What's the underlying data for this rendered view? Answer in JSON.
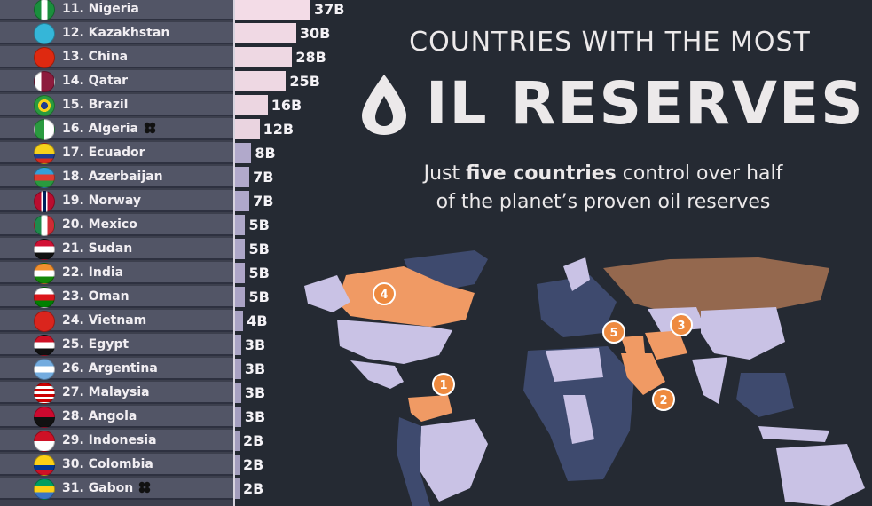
{
  "header": {
    "title_line1": "COUNTRIES WITH THE MOST",
    "title_line2": "OIL RESERVES",
    "subtitle_pre": "Just ",
    "subtitle_bold": "five countries",
    "subtitle_post": " control over half",
    "subtitle_line2": "of the planet’s proven oil reserves"
  },
  "map": {
    "markers": [
      "1",
      "2",
      "3",
      "4",
      "5"
    ],
    "colors": {
      "top5": "#f09a64",
      "reserves": "#c9c2e5",
      "other": "#3e4a6e",
      "marker": "#ee8a3f"
    }
  },
  "chart_data": {
    "type": "bar",
    "orientation": "horizontal",
    "xlim": [
      0,
      37
    ],
    "categories": [
      "11. Nigeria",
      "12. Kazakhstan",
      "13. China",
      "14. Qatar",
      "15. Brazil",
      "16. Algeria",
      "17. Ecuador",
      "18. Azerbaijan",
      "19. Norway",
      "20. Mexico",
      "21. Sudan",
      "22. India",
      "23. Oman",
      "24. Vietnam",
      "25. Egypt",
      "26. Argentina",
      "27. Malaysia",
      "28. Angola",
      "29. Indonesia",
      "30. Colombia",
      "31. Gabon"
    ],
    "values": [
      37,
      30,
      28,
      25,
      16,
      12,
      8,
      7,
      7,
      5,
      5,
      5,
      5,
      4,
      3,
      3,
      3,
      3,
      2,
      2,
      2
    ],
    "data_labels": [
      "37B",
      "30B",
      "28B",
      "25B",
      "16B",
      "12B",
      "8B",
      "7B",
      "7B",
      "5B",
      "5B",
      "5B",
      "5B",
      "4B",
      "3B",
      "3B",
      "3B",
      "3B",
      "2B",
      "2B",
      "2B"
    ],
    "opec": [
      "16. Algeria",
      "31. Gabon"
    ],
    "flags": [
      "nigeria",
      "kazakhstan",
      "china",
      "qatar",
      "brazil",
      "algeria",
      "ecuador",
      "azerbaijan",
      "norway",
      "mexico",
      "sudan",
      "india",
      "oman",
      "vietnam",
      "egypt",
      "argentina",
      "malaysia",
      "angola",
      "indonesia",
      "colombia",
      "gabon"
    ],
    "bar_color_light": "#f3dce7",
    "bar_color_dark": "#b8b0d4"
  }
}
